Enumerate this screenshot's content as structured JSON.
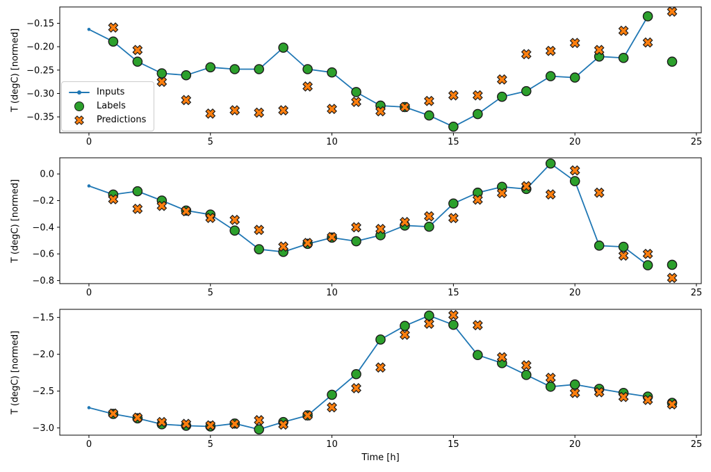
{
  "legend": {
    "items": [
      {
        "label": "Inputs",
        "marker": "line-dot-icon"
      },
      {
        "label": "Labels",
        "marker": "circle-icon"
      },
      {
        "label": "Predictions",
        "marker": "x-icon"
      }
    ]
  },
  "colors": {
    "inputs": "#1f77b4",
    "labels": "#2ca02c",
    "predictions": "#ff7f0e",
    "marker_edge": "#1a1a1a",
    "spine": "#000000",
    "tick_text": "#000000",
    "legend_border": "#cccccc"
  },
  "chart_data": [
    {
      "type": "line",
      "ylabel": "T (degC) [normed]",
      "xlabel": "",
      "xlim": [
        -1.2,
        25.2
      ],
      "ylim": [
        -0.384,
        -0.115
      ],
      "grid": false,
      "legend_position": "center-left-inside",
      "xticks": [
        0,
        5,
        10,
        15,
        20,
        25
      ],
      "xtick_labels": [
        "0",
        "5",
        "10",
        "15",
        "20",
        "25"
      ],
      "ytick_values": [
        -0.15,
        -0.2,
        -0.25,
        -0.3,
        -0.35
      ],
      "ytick_labels": [
        "−0.15",
        "−0.20",
        "−0.25",
        "−0.30",
        "−0.35"
      ],
      "series": [
        {
          "name": "Inputs",
          "kind": "line-dot",
          "color": "#1f77b4",
          "x": [
            0,
            1,
            2,
            3,
            4,
            5,
            6,
            7,
            8,
            9,
            10,
            11,
            12,
            13,
            14,
            15,
            16,
            17,
            18,
            19,
            20,
            21,
            22,
            23
          ],
          "y": [
            -0.163,
            -0.189,
            -0.232,
            -0.257,
            -0.261,
            -0.244,
            -0.248,
            -0.248,
            -0.202,
            -0.248,
            -0.255,
            -0.297,
            -0.326,
            -0.329,
            -0.347,
            -0.371,
            -0.344,
            -0.307,
            -0.295,
            -0.263,
            -0.266,
            -0.221,
            -0.224,
            -0.135
          ]
        },
        {
          "name": "Labels",
          "kind": "circle",
          "color": "#2ca02c",
          "x": [
            1,
            2,
            3,
            4,
            5,
            6,
            7,
            8,
            9,
            10,
            11,
            12,
            13,
            14,
            15,
            16,
            17,
            18,
            19,
            20,
            21,
            22,
            23,
            24
          ],
          "y": [
            -0.189,
            -0.232,
            -0.257,
            -0.261,
            -0.244,
            -0.248,
            -0.248,
            -0.202,
            -0.248,
            -0.255,
            -0.297,
            -0.326,
            -0.329,
            -0.347,
            -0.371,
            -0.344,
            -0.307,
            -0.295,
            -0.263,
            -0.266,
            -0.221,
            -0.224,
            -0.135,
            -0.232
          ]
        },
        {
          "name": "Predictions",
          "kind": "x",
          "color": "#ff7f0e",
          "x": [
            1,
            2,
            3,
            4,
            5,
            6,
            7,
            8,
            9,
            10,
            11,
            12,
            13,
            14,
            15,
            16,
            17,
            18,
            19,
            20,
            21,
            22,
            23,
            24
          ],
          "y": [
            -0.159,
            -0.207,
            -0.275,
            -0.314,
            -0.343,
            -0.336,
            -0.341,
            -0.336,
            -0.285,
            -0.333,
            -0.318,
            -0.338,
            -0.329,
            -0.316,
            -0.304,
            -0.304,
            -0.27,
            -0.216,
            -0.209,
            -0.192,
            -0.207,
            -0.166,
            -0.191,
            -0.125
          ]
        }
      ]
    },
    {
      "type": "line",
      "ylabel": "T (degC) [normed]",
      "xlabel": "",
      "xlim": [
        -1.2,
        25.2
      ],
      "ylim": [
        -0.823,
        0.121
      ],
      "grid": false,
      "xticks": [
        0,
        5,
        10,
        15,
        20,
        25
      ],
      "xtick_labels": [
        "0",
        "5",
        "10",
        "15",
        "20",
        "25"
      ],
      "ytick_values": [
        0.0,
        -0.2,
        -0.4,
        -0.6,
        -0.8
      ],
      "ytick_labels": [
        "0.0",
        "−0.2",
        "−0.4",
        "−0.6",
        "−0.8"
      ],
      "series": [
        {
          "name": "Inputs",
          "kind": "line-dot",
          "color": "#1f77b4",
          "x": [
            0,
            1,
            2,
            3,
            4,
            5,
            6,
            7,
            8,
            9,
            10,
            11,
            12,
            13,
            14,
            15,
            16,
            17,
            18,
            19,
            20,
            21,
            22,
            23
          ],
          "y": [
            -0.09,
            -0.155,
            -0.13,
            -0.2,
            -0.275,
            -0.305,
            -0.425,
            -0.565,
            -0.585,
            -0.525,
            -0.478,
            -0.505,
            -0.46,
            -0.387,
            -0.396,
            -0.222,
            -0.141,
            -0.097,
            -0.113,
            0.078,
            -0.054,
            -0.538,
            -0.547,
            -0.685
          ]
        },
        {
          "name": "Labels",
          "kind": "circle",
          "color": "#2ca02c",
          "x": [
            1,
            2,
            3,
            4,
            5,
            6,
            7,
            8,
            9,
            10,
            11,
            12,
            13,
            14,
            15,
            16,
            17,
            18,
            19,
            20,
            21,
            22,
            23,
            24
          ],
          "y": [
            -0.155,
            -0.13,
            -0.2,
            -0.275,
            -0.305,
            -0.425,
            -0.565,
            -0.585,
            -0.525,
            -0.478,
            -0.505,
            -0.46,
            -0.387,
            -0.396,
            -0.222,
            -0.141,
            -0.097,
            -0.113,
            0.078,
            -0.054,
            -0.538,
            -0.547,
            -0.685,
            -0.682
          ]
        },
        {
          "name": "Predictions",
          "kind": "x",
          "color": "#ff7f0e",
          "x": [
            1,
            2,
            3,
            4,
            5,
            6,
            7,
            8,
            9,
            10,
            11,
            12,
            13,
            14,
            15,
            16,
            17,
            18,
            19,
            20,
            21,
            22,
            23,
            24
          ],
          "y": [
            -0.19,
            -0.262,
            -0.24,
            -0.28,
            -0.33,
            -0.345,
            -0.42,
            -0.545,
            -0.518,
            -0.474,
            -0.4,
            -0.413,
            -0.361,
            -0.318,
            -0.331,
            -0.193,
            -0.144,
            -0.092,
            -0.154,
            0.026,
            -0.141,
            -0.613,
            -0.6,
            -0.78
          ]
        }
      ]
    },
    {
      "type": "line",
      "ylabel": "T (degC) [normed]",
      "xlabel": "Time [h]",
      "xlim": [
        -1.2,
        25.2
      ],
      "ylim": [
        -3.098,
        -1.39
      ],
      "grid": false,
      "xticks": [
        0,
        5,
        10,
        15,
        20,
        25
      ],
      "xtick_labels": [
        "0",
        "5",
        "10",
        "15",
        "20",
        "25"
      ],
      "ytick_values": [
        -1.5,
        -2.0,
        -2.5,
        -3.0
      ],
      "ytick_labels": [
        "−1.5",
        "−2.0",
        "−2.5",
        "−3.0"
      ],
      "series": [
        {
          "name": "Inputs",
          "kind": "line-dot",
          "color": "#1f77b4",
          "x": [
            0,
            1,
            2,
            3,
            4,
            5,
            6,
            7,
            8,
            9,
            10,
            11,
            12,
            13,
            14,
            15,
            16,
            17,
            18,
            19,
            20,
            21,
            22,
            23
          ],
          "y": [
            -2.725,
            -2.81,
            -2.87,
            -2.95,
            -2.97,
            -2.98,
            -2.94,
            -3.02,
            -2.92,
            -2.83,
            -2.55,
            -2.27,
            -1.8,
            -1.615,
            -1.475,
            -1.6,
            -2.01,
            -2.12,
            -2.28,
            -2.44,
            -2.41,
            -2.47,
            -2.525,
            -2.575
          ]
        },
        {
          "name": "Labels",
          "kind": "circle",
          "color": "#2ca02c",
          "x": [
            1,
            2,
            3,
            4,
            5,
            6,
            7,
            8,
            9,
            10,
            11,
            12,
            13,
            14,
            15,
            16,
            17,
            18,
            19,
            20,
            21,
            22,
            23,
            24
          ],
          "y": [
            -2.81,
            -2.87,
            -2.95,
            -2.97,
            -2.98,
            -2.94,
            -3.02,
            -2.92,
            -2.83,
            -2.55,
            -2.27,
            -1.8,
            -1.615,
            -1.475,
            -1.6,
            -2.01,
            -2.12,
            -2.28,
            -2.44,
            -2.41,
            -2.47,
            -2.525,
            -2.575,
            -2.66
          ]
        },
        {
          "name": "Predictions",
          "kind": "x",
          "color": "#ff7f0e",
          "x": [
            1,
            2,
            3,
            4,
            5,
            6,
            7,
            8,
            9,
            10,
            11,
            12,
            13,
            14,
            15,
            16,
            17,
            18,
            19,
            20,
            21,
            22,
            23,
            24
          ],
          "y": [
            -2.805,
            -2.86,
            -2.92,
            -2.945,
            -2.965,
            -2.945,
            -2.895,
            -2.955,
            -2.83,
            -2.72,
            -2.46,
            -2.18,
            -1.735,
            -1.585,
            -1.468,
            -1.605,
            -2.04,
            -2.15,
            -2.32,
            -2.525,
            -2.515,
            -2.58,
            -2.62,
            -2.68
          ]
        }
      ]
    }
  ]
}
